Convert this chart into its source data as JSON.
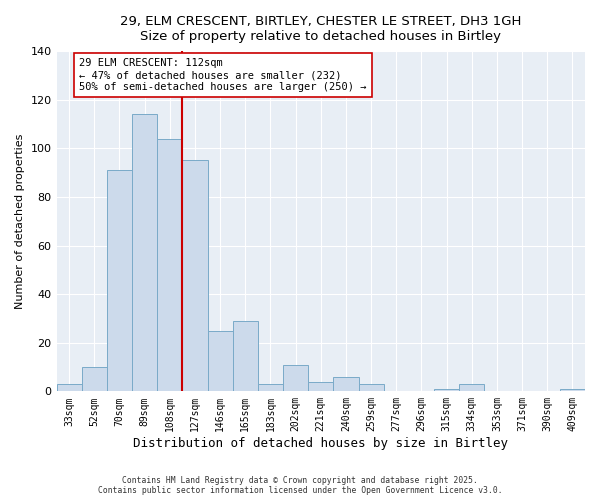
{
  "title": "29, ELM CRESCENT, BIRTLEY, CHESTER LE STREET, DH3 1GH",
  "subtitle": "Size of property relative to detached houses in Birtley",
  "xlabel": "Distribution of detached houses by size in Birtley",
  "ylabel": "Number of detached properties",
  "categories": [
    "33sqm",
    "52sqm",
    "70sqm",
    "89sqm",
    "108sqm",
    "127sqm",
    "146sqm",
    "165sqm",
    "183sqm",
    "202sqm",
    "221sqm",
    "240sqm",
    "259sqm",
    "277sqm",
    "296sqm",
    "315sqm",
    "334sqm",
    "353sqm",
    "371sqm",
    "390sqm",
    "409sqm"
  ],
  "values": [
    3,
    10,
    91,
    114,
    104,
    95,
    25,
    29,
    3,
    11,
    4,
    6,
    3,
    0,
    0,
    1,
    3,
    0,
    0,
    0,
    1
  ],
  "bar_color": "#ccdaeb",
  "bar_edge_color": "#7aaac8",
  "bar_width": 1.0,
  "vline_x": 4.5,
  "vline_color": "#cc0000",
  "annotation_title": "29 ELM CRESCENT: 112sqm",
  "annotation_line1": "← 47% of detached houses are smaller (232)",
  "annotation_line2": "50% of semi-detached houses are larger (250) →",
  "annotation_box_color": "#ffffff",
  "annotation_box_edge": "#cc0000",
  "ylim": [
    0,
    140
  ],
  "bg_color": "#ffffff",
  "plot_bg_color": "#e8eef5",
  "grid_color": "#ffffff",
  "footer1": "Contains HM Land Registry data © Crown copyright and database right 2025.",
  "footer2": "Contains public sector information licensed under the Open Government Licence v3.0."
}
